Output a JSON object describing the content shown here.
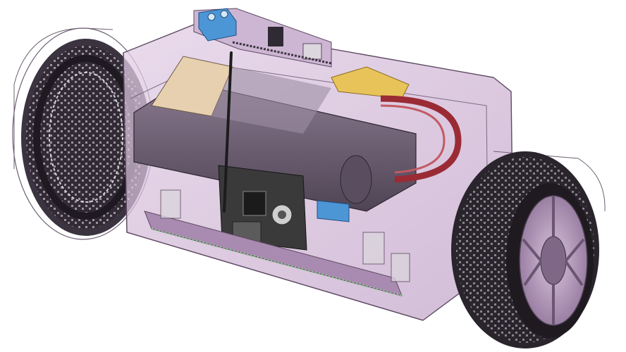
{
  "scene": {
    "subject": "robot-chassis-render",
    "colors": {
      "background": "#ffffff",
      "shell": "#c9a6cf",
      "shell_edge": "#5e4a63",
      "tire": "#2a242c",
      "tire_tread": "#e8e4ea",
      "hub": "#b89bc0",
      "battery": "#6b5d70",
      "battery_label": "#e6d0b0",
      "connector": "#e8c35a",
      "terminal_block": "#4d96d6",
      "pcb": "#3a3a3a",
      "wire_red": "#9a2b35",
      "antenna": "#1c1c1c"
    },
    "icons": [
      "wheel-left-icon",
      "wheel-right-icon",
      "battery-icon",
      "antenna-icon",
      "terminal-block-icon",
      "controller-board-icon"
    ]
  }
}
